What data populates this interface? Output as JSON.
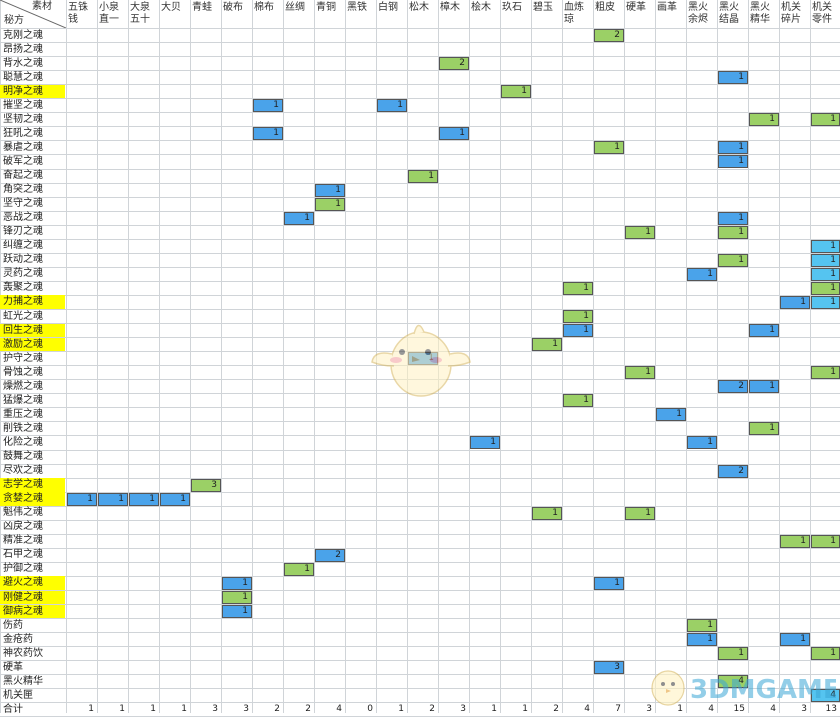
{
  "header": {
    "corner_top": "素材",
    "corner_bottom": "秘方",
    "columns": [
      "五铢\n钱",
      "小泉\n直一",
      "大泉\n五十",
      "大贝",
      "青蛙",
      "破布",
      "棉布",
      "丝绸",
      "青铜",
      "黑铁",
      "白钢",
      "松木",
      "樟木",
      "桧木",
      "玖石",
      "碧玉",
      "血炼\n琼",
      "粗皮",
      "硬革",
      "画革",
      "黑火\n余烬",
      "黑火\n结晶",
      "黑火\n精华",
      "机关\n碎片",
      "机关\n零件"
    ]
  },
  "rows": [
    {
      "name": "克刚之魂",
      "hl": false,
      "marks": [
        [
          17,
          "2",
          "green"
        ]
      ]
    },
    {
      "name": "昂扬之魂",
      "hl": false,
      "marks": []
    },
    {
      "name": "背水之魂",
      "hl": false,
      "marks": [
        [
          12,
          "2",
          "green"
        ]
      ]
    },
    {
      "name": "聪慧之魂",
      "hl": false,
      "marks": [
        [
          21,
          "1",
          "blue"
        ]
      ]
    },
    {
      "name": "明净之魂",
      "hl": true,
      "marks": [
        [
          14,
          "1",
          "green"
        ]
      ]
    },
    {
      "name": "摧坚之魂",
      "hl": false,
      "marks": [
        [
          6,
          "1",
          "blue"
        ],
        [
          10,
          "1",
          "blue"
        ]
      ]
    },
    {
      "name": "坚韧之魂",
      "hl": false,
      "marks": [
        [
          22,
          "1",
          "green"
        ],
        [
          24,
          "1",
          "green"
        ]
      ]
    },
    {
      "name": "狂吼之魂",
      "hl": false,
      "marks": [
        [
          6,
          "1",
          "blue"
        ],
        [
          12,
          "1",
          "blue"
        ]
      ]
    },
    {
      "name": "暴虐之魂",
      "hl": false,
      "marks": [
        [
          17,
          "1",
          "green"
        ],
        [
          21,
          "1",
          "blue"
        ]
      ]
    },
    {
      "name": "破军之魂",
      "hl": false,
      "marks": [
        [
          21,
          "1",
          "blue"
        ]
      ]
    },
    {
      "name": "奋起之魂",
      "hl": false,
      "marks": [
        [
          11,
          "1",
          "green"
        ]
      ]
    },
    {
      "name": "角突之魂",
      "hl": false,
      "marks": [
        [
          8,
          "1",
          "blue"
        ]
      ]
    },
    {
      "name": "坚守之魂",
      "hl": false,
      "marks": [
        [
          8,
          "1",
          "green"
        ]
      ]
    },
    {
      "name": "恶战之魂",
      "hl": false,
      "marks": [
        [
          7,
          "1",
          "blue"
        ],
        [
          21,
          "1",
          "blue"
        ]
      ]
    },
    {
      "name": "锋刃之魂",
      "hl": false,
      "marks": [
        [
          18,
          "1",
          "green"
        ],
        [
          21,
          "1",
          "green"
        ]
      ]
    },
    {
      "name": "纠缠之魂",
      "hl": false,
      "marks": [
        [
          24,
          "1",
          "cyan"
        ]
      ]
    },
    {
      "name": "跃动之魂",
      "hl": false,
      "marks": [
        [
          21,
          "1",
          "green"
        ],
        [
          24,
          "1",
          "cyan"
        ]
      ]
    },
    {
      "name": "灵药之魂",
      "hl": false,
      "marks": [
        [
          20,
          "1",
          "blue"
        ],
        [
          24,
          "1",
          "cyan"
        ]
      ]
    },
    {
      "name": "轰聚之魂",
      "hl": false,
      "marks": [
        [
          16,
          "1",
          "green"
        ],
        [
          24,
          "1",
          "green"
        ]
      ]
    },
    {
      "name": "力捕之魂",
      "hl": true,
      "marks": [
        [
          23,
          "1",
          "blue"
        ],
        [
          24,
          "1",
          "cyan"
        ]
      ]
    },
    {
      "name": "虹光之魂",
      "hl": false,
      "marks": [
        [
          16,
          "1",
          "green"
        ]
      ]
    },
    {
      "name": "回生之魂",
      "hl": true,
      "marks": [
        [
          16,
          "1",
          "blue"
        ],
        [
          22,
          "1",
          "blue"
        ]
      ]
    },
    {
      "name": "激励之魂",
      "hl": true,
      "marks": [
        [
          15,
          "1",
          "green"
        ]
      ]
    },
    {
      "name": "护守之魂",
      "hl": false,
      "marks": [
        [
          11,
          "1",
          "blue"
        ]
      ]
    },
    {
      "name": "骨蚀之魂",
      "hl": false,
      "marks": [
        [
          18,
          "1",
          "green"
        ],
        [
          24,
          "1",
          "green"
        ]
      ]
    },
    {
      "name": "燥燃之魂",
      "hl": false,
      "marks": [
        [
          21,
          "2",
          "blue"
        ],
        [
          22,
          "1",
          "blue"
        ]
      ]
    },
    {
      "name": "猛爆之魂",
      "hl": false,
      "marks": [
        [
          16,
          "1",
          "green"
        ]
      ]
    },
    {
      "name": "重压之魂",
      "hl": false,
      "marks": [
        [
          19,
          "1",
          "blue"
        ]
      ]
    },
    {
      "name": "削铁之魂",
      "hl": false,
      "marks": [
        [
          22,
          "1",
          "green"
        ]
      ]
    },
    {
      "name": "化险之魂",
      "hl": false,
      "marks": [
        [
          13,
          "1",
          "blue"
        ],
        [
          20,
          "1",
          "blue"
        ]
      ]
    },
    {
      "name": "鼓舞之魂",
      "hl": false,
      "marks": []
    },
    {
      "name": "尽欢之魂",
      "hl": false,
      "marks": [
        [
          21,
          "2",
          "blue"
        ]
      ]
    },
    {
      "name": "志学之魂",
      "hl": true,
      "marks": [
        [
          4,
          "3",
          "green"
        ]
      ]
    },
    {
      "name": "贪婪之魂",
      "hl": true,
      "marks": [
        [
          0,
          "1",
          "blue"
        ],
        [
          1,
          "1",
          "blue"
        ],
        [
          2,
          "1",
          "blue"
        ],
        [
          3,
          "1",
          "blue"
        ]
      ]
    },
    {
      "name": "魁伟之魂",
      "hl": false,
      "marks": [
        [
          15,
          "1",
          "green"
        ],
        [
          18,
          "1",
          "green"
        ]
      ]
    },
    {
      "name": "凶戾之魂",
      "hl": false,
      "marks": []
    },
    {
      "name": "精准之魂",
      "hl": false,
      "marks": [
        [
          23,
          "1",
          "green"
        ],
        [
          24,
          "1",
          "green"
        ]
      ]
    },
    {
      "name": "石甲之魂",
      "hl": false,
      "marks": [
        [
          8,
          "2",
          "blue"
        ]
      ]
    },
    {
      "name": "护御之魂",
      "hl": false,
      "marks": [
        [
          7,
          "1",
          "green"
        ]
      ]
    },
    {
      "name": "避火之魂",
      "hl": true,
      "marks": [
        [
          5,
          "1",
          "blue"
        ],
        [
          17,
          "1",
          "blue"
        ]
      ]
    },
    {
      "name": "刚健之魂",
      "hl": true,
      "marks": [
        [
          5,
          "1",
          "green"
        ]
      ]
    },
    {
      "name": "御病之魂",
      "hl": true,
      "marks": [
        [
          5,
          "1",
          "blue"
        ]
      ]
    },
    {
      "name": "伤药",
      "hl": false,
      "marks": [
        [
          20,
          "1",
          "green"
        ]
      ]
    },
    {
      "name": "金疮药",
      "hl": false,
      "marks": [
        [
          20,
          "1",
          "blue"
        ],
        [
          23,
          "1",
          "blue"
        ]
      ]
    },
    {
      "name": "神农药饮",
      "hl": false,
      "marks": [
        [
          21,
          "1",
          "green"
        ],
        [
          24,
          "1",
          "green"
        ]
      ]
    },
    {
      "name": "硬革",
      "hl": false,
      "marks": [
        [
          17,
          "3",
          "blue"
        ]
      ]
    },
    {
      "name": "黑火精华",
      "hl": false,
      "marks": [
        [
          21,
          "4",
          "green"
        ]
      ]
    },
    {
      "name": "机关匣",
      "hl": false,
      "marks": [
        [
          24,
          "4",
          "cyan"
        ]
      ]
    }
  ],
  "totals": {
    "label": "合计",
    "values": [
      "1",
      "1",
      "1",
      "1",
      "3",
      "3",
      "2",
      "2",
      "4",
      "0",
      "1",
      "2",
      "3",
      "1",
      "1",
      "2",
      "4",
      "7",
      "3",
      "1",
      "4",
      "15",
      "4",
      "3",
      "13"
    ]
  },
  "watermark": {
    "text": "3DMGAME",
    "icon": "chick-mascot-icon"
  },
  "colors": {
    "green": "#9bd066",
    "blue": "#4aa3ea",
    "cyan": "#55c4f0",
    "highlight": "#ffff00"
  }
}
